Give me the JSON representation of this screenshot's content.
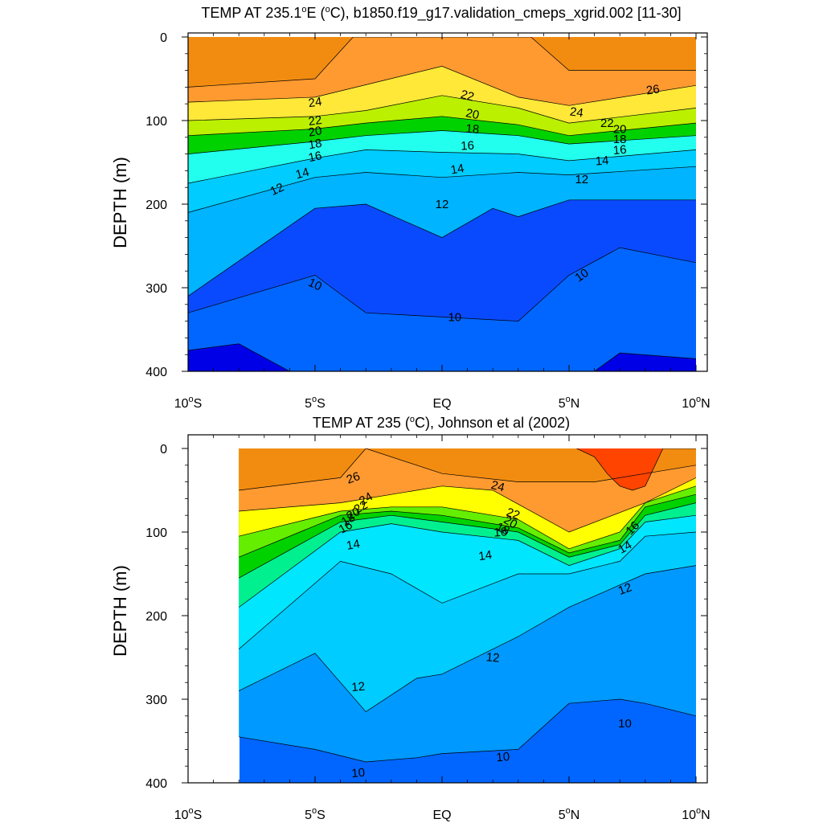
{
  "chart_data": [
    {
      "type": "contour",
      "title_parts": [
        "TEMP AT 235.1",
        "o",
        "E (",
        "o",
        "C), b1850.f19_g17.validation_cmeps_xgrid.002 [11-30]"
      ],
      "ylabel": "DEPTH (m)",
      "ylim": [
        400,
        0
      ],
      "xlim": [
        -10,
        10
      ],
      "y_ticks": [
        "0",
        "100",
        "200",
        "300",
        "400"
      ],
      "x_ticks": [
        {
          "num": "10",
          "sup": "o",
          "hem": "S"
        },
        {
          "num": "5",
          "sup": "o",
          "hem": "S"
        },
        {
          "num": "EQ",
          "sup": "",
          "hem": ""
        },
        {
          "num": "5",
          "sup": "o",
          "hem": "N"
        },
        {
          "num": "10",
          "sup": "o",
          "hem": "N"
        }
      ],
      "isotherm_depths": [
        {
          "temp": 26,
          "x": [
            -10,
            -5,
            -3.5,
            0,
            3.5,
            5,
            10
          ],
          "depth": [
            60,
            50,
            0,
            0,
            0,
            40,
            40
          ]
        },
        {
          "temp": 24,
          "x": [
            -10,
            -5,
            0,
            3,
            5,
            10
          ],
          "depth": [
            78,
            72,
            35,
            72,
            82,
            58
          ]
        },
        {
          "temp": 22,
          "x": [
            -10,
            -5,
            -3,
            0,
            3,
            5,
            10
          ],
          "depth": [
            100,
            95,
            88,
            70,
            85,
            103,
            85
          ]
        },
        {
          "temp": 20,
          "x": [
            -10,
            -5,
            -3,
            0,
            3,
            5,
            10
          ],
          "depth": [
            118,
            110,
            103,
            95,
            105,
            118,
            103
          ]
        },
        {
          "temp": 18,
          "x": [
            -10,
            -5,
            -3,
            0,
            3,
            5,
            10
          ],
          "depth": [
            140,
            125,
            118,
            112,
            118,
            128,
            118
          ]
        },
        {
          "temp": 16,
          "x": [
            -10,
            -5,
            -3,
            0,
            3,
            5,
            10
          ],
          "depth": [
            175,
            145,
            135,
            138,
            140,
            148,
            135
          ]
        },
        {
          "temp": 14,
          "x": [
            -10,
            -5,
            -3,
            0,
            3,
            5,
            10
          ],
          "depth": [
            210,
            168,
            162,
            168,
            162,
            165,
            155
          ]
        },
        {
          "temp": 12,
          "x": [
            -10,
            -5,
            -3,
            0,
            2,
            3,
            5,
            10
          ],
          "depth": [
            310,
            205,
            200,
            240,
            205,
            215,
            195,
            195
          ]
        },
        {
          "temp": 10,
          "x": [
            -10,
            -5,
            -3,
            0,
            3,
            5,
            7,
            10
          ],
          "depth": [
            330,
            285,
            330,
            335,
            340,
            285,
            252,
            270
          ]
        },
        {
          "temp": 8,
          "x": [
            -10,
            -8,
            -6,
            6,
            7,
            10
          ],
          "depth": [
            375,
            367,
            400,
            400,
            378,
            385
          ]
        }
      ],
      "contour_labels": [
        "26",
        "24",
        "24",
        "22",
        "22",
        "22",
        "20",
        "20",
        "20",
        "18",
        "18",
        "18",
        "16",
        "16",
        "16",
        "14",
        "14",
        "14",
        "12",
        "12",
        "12",
        "10",
        "10",
        "10"
      ]
    },
    {
      "type": "contour",
      "title_parts": [
        "TEMP AT 235 (",
        "o",
        "C), Johnson et al (2002)"
      ],
      "ylabel": "DEPTH (m)",
      "ylim": [
        400,
        0
      ],
      "xlim": [
        -10,
        10
      ],
      "data_xlim": [
        -8,
        10
      ],
      "y_ticks": [
        "0",
        "100",
        "200",
        "300",
        "400"
      ],
      "x_ticks": [
        {
          "num": "10",
          "sup": "o",
          "hem": "S"
        },
        {
          "num": "5",
          "sup": "o",
          "hem": "S"
        },
        {
          "num": "EQ",
          "sup": "",
          "hem": ""
        },
        {
          "num": "5",
          "sup": "o",
          "hem": "N"
        },
        {
          "num": "10",
          "sup": "o",
          "hem": "N"
        }
      ],
      "isotherm_depths": [
        {
          "temp": 28,
          "x": [
            5.3,
            6,
            6.5,
            7,
            7.5,
            8,
            8.7,
            10
          ],
          "depth": [
            0,
            10,
            30,
            45,
            50,
            45,
            0,
            0
          ]
        },
        {
          "temp": 26,
          "x": [
            -8,
            -4,
            -3,
            0,
            3,
            6,
            8,
            10
          ],
          "depth": [
            50,
            35,
            0,
            30,
            40,
            40,
            30,
            20
          ]
        },
        {
          "temp": 24,
          "x": [
            -8,
            -4,
            0,
            2,
            5,
            8,
            10
          ],
          "depth": [
            75,
            65,
            45,
            50,
            100,
            65,
            35
          ]
        },
        {
          "temp": 22,
          "x": [
            -8,
            -4,
            -2,
            0,
            3,
            5,
            7,
            8,
            10
          ],
          "depth": [
            105,
            75,
            70,
            70,
            85,
            120,
            100,
            65,
            45
          ]
        },
        {
          "temp": 20,
          "x": [
            -8,
            -4,
            -2,
            0,
            3,
            5,
            7,
            8,
            10
          ],
          "depth": [
            130,
            80,
            75,
            80,
            95,
            125,
            110,
            70,
            55
          ]
        },
        {
          "temp": 18,
          "x": [
            -8,
            -4,
            -2,
            0,
            3,
            5,
            7,
            8,
            10
          ],
          "depth": [
            155,
            88,
            80,
            88,
            100,
            130,
            115,
            80,
            65
          ]
        },
        {
          "temp": 16,
          "x": [
            -8,
            -4,
            -2,
            0,
            3,
            5,
            7,
            8,
            10
          ],
          "depth": [
            190,
            100,
            90,
            100,
            110,
            140,
            120,
            88,
            80
          ]
        },
        {
          "temp": 14,
          "x": [
            -8,
            -4,
            -2,
            0,
            3,
            5,
            7,
            8,
            10
          ],
          "depth": [
            240,
            135,
            150,
            185,
            150,
            150,
            135,
            105,
            100
          ]
        },
        {
          "temp": 12,
          "x": [
            -8,
            -5,
            -3,
            -1,
            0,
            3,
            5,
            8,
            10
          ],
          "depth": [
            290,
            245,
            315,
            275,
            270,
            225,
            190,
            150,
            140
          ]
        },
        {
          "temp": 10,
          "x": [
            -8,
            -5,
            -3,
            -1,
            0,
            3,
            5,
            7,
            8,
            10
          ],
          "depth": [
            345,
            360,
            375,
            370,
            365,
            360,
            305,
            300,
            305,
            320
          ]
        }
      ],
      "contour_labels": [
        "26",
        "24",
        "24",
        "22",
        "22",
        "20",
        "20",
        "18",
        "18",
        "16",
        "16",
        "16",
        "14",
        "14",
        "14",
        "12",
        "12",
        "12",
        "10",
        "10",
        "10"
      ]
    }
  ],
  "colors": {
    "t8": "#0000e6",
    "t10": "#0a4aff",
    "t10b": "#0066ff",
    "t12": "#0099ff",
    "t12b": "#00b4ff",
    "t14": "#00ccff",
    "t14b": "#00e6ff",
    "t16": "#22ffee",
    "t16b": "#00f090",
    "t18": "#00d200",
    "t18b": "#66ee00",
    "t20": "#bbf000",
    "t22": "#ffff00",
    "t22b": "#ffe838",
    "t24": "#ffb030",
    "t24b": "#ff9a30",
    "t26": "#f28c10",
    "t28": "#ff4400",
    "line": "#000000"
  }
}
